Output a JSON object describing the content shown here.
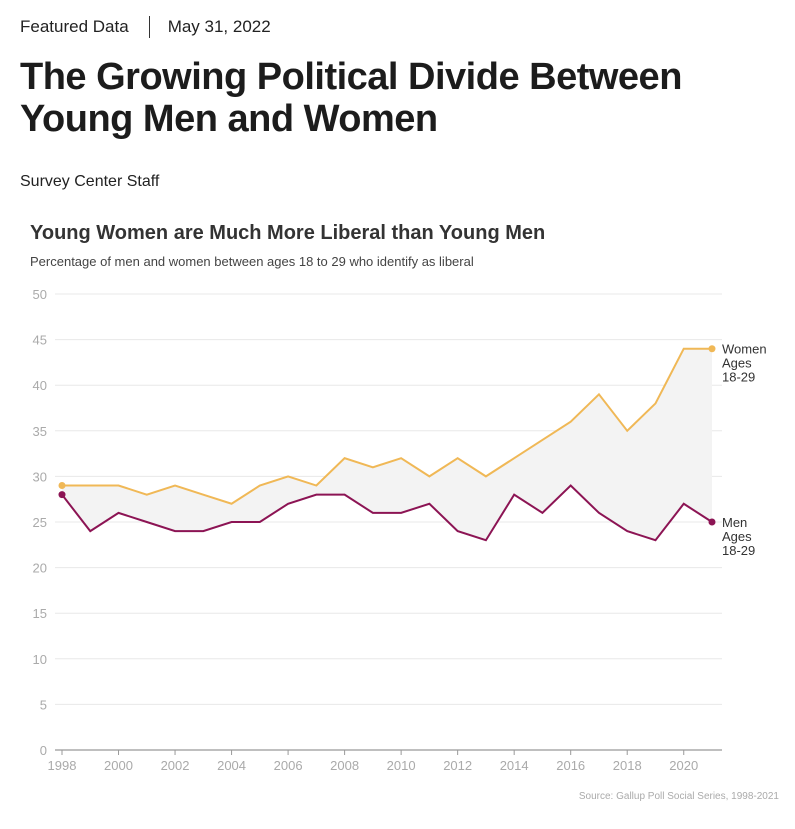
{
  "header": {
    "category": "Featured Data",
    "date": "May 31, 2022",
    "title": "The Growing Political Divide Between Young Men and Women",
    "author": "Survey Center Staff"
  },
  "chart_data": {
    "type": "line",
    "title": "Young Women are Much More Liberal than Young Men",
    "subtitle": "Percentage of men and women between ages 18 to 29 who identify as liberal",
    "x": [
      1998,
      1999,
      2000,
      2001,
      2002,
      2003,
      2004,
      2005,
      2006,
      2007,
      2008,
      2009,
      2010,
      2011,
      2012,
      2013,
      2014,
      2015,
      2016,
      2017,
      2018,
      2019,
      2020,
      2021
    ],
    "xticks": [
      "1998",
      "2000",
      "2002",
      "2004",
      "2006",
      "2008",
      "2010",
      "2012",
      "2014",
      "2016",
      "2018",
      "2020"
    ],
    "yticks": [
      "0",
      "5",
      "10",
      "15",
      "20",
      "25",
      "30",
      "35",
      "40",
      "45",
      "50"
    ],
    "ylim": [
      0,
      50
    ],
    "grid": true,
    "series": [
      {
        "name": "Women Ages 18-29",
        "label_lines": [
          "Women",
          "Ages",
          "18-29"
        ],
        "color": "#f0b856",
        "values": [
          29,
          29,
          29,
          28,
          29,
          28,
          27,
          29,
          30,
          29,
          32,
          31,
          32,
          30,
          32,
          30,
          32,
          34,
          36,
          39,
          35,
          38,
          44,
          44
        ]
      },
      {
        "name": "Men Ages 18-29",
        "label_lines": [
          "Men",
          "Ages",
          "18-29"
        ],
        "color": "#8c1454",
        "values": [
          28,
          24,
          26,
          25,
          24,
          24,
          25,
          25,
          27,
          28,
          28,
          26,
          26,
          27,
          24,
          23,
          28,
          26,
          29,
          26,
          24,
          23,
          27,
          25
        ]
      }
    ],
    "source": "Source: Gallup Poll Social Series, 1998-2021"
  }
}
